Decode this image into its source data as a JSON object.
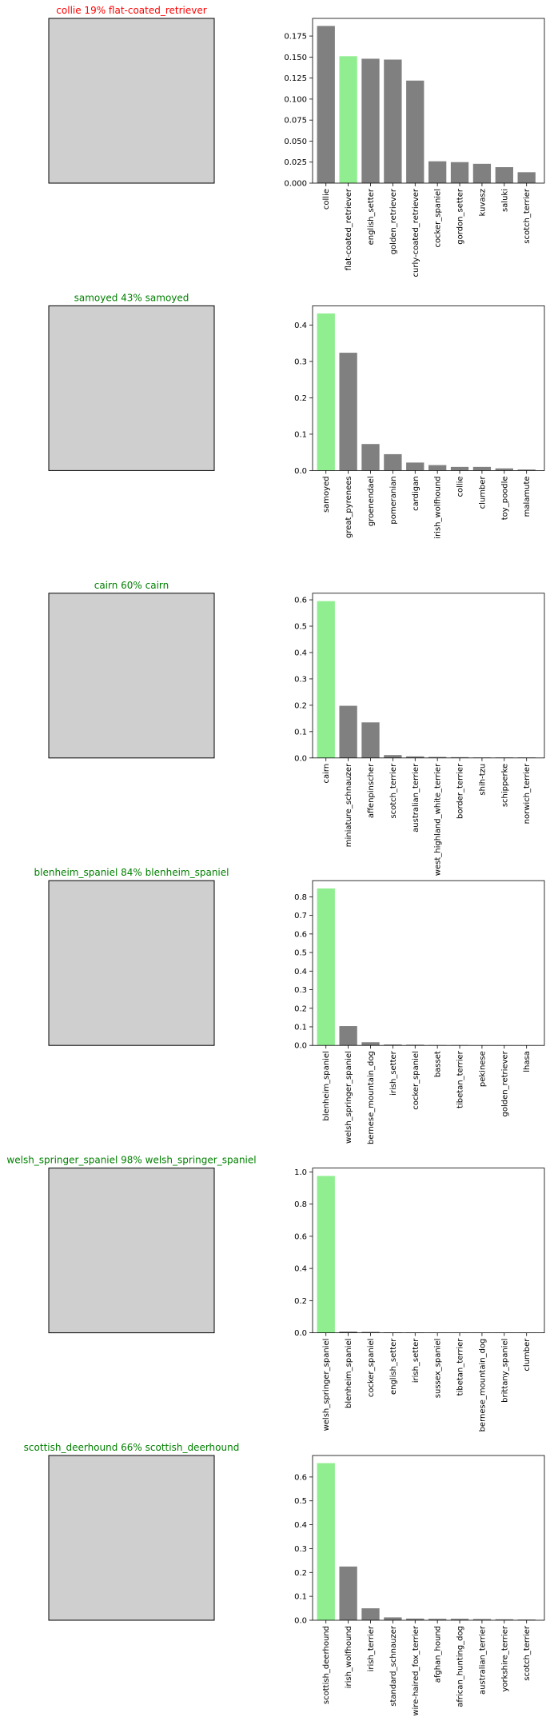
{
  "colors": {
    "bar": "#808080",
    "highlight": "#90ee90",
    "correct": "#008000",
    "wrong": "#ff0000"
  },
  "chart_data": [
    {
      "type": "bar",
      "title": "collie 19% flat-coated_retriever",
      "title_status": "wrong",
      "highlight_index": 1,
      "categories": [
        "collie",
        "flat-coated_retriever",
        "english_setter",
        "golden_retriever",
        "curly-coated_retriever",
        "cocker_spaniel",
        "gordon_setter",
        "kuvasz",
        "saluki",
        "scotch_terrier"
      ],
      "values": [
        0.187,
        0.151,
        0.148,
        0.147,
        0.122,
        0.026,
        0.025,
        0.023,
        0.019,
        0.013
      ],
      "ylim": [
        0,
        0.196
      ],
      "yticks": [
        0.0,
        0.025,
        0.05,
        0.075,
        0.1,
        0.125,
        0.15,
        0.175
      ],
      "ytick_labels": [
        "0.000",
        "0.025",
        "0.050",
        "0.075",
        "0.100",
        "0.125",
        "0.150",
        "0.175"
      ]
    },
    {
      "type": "bar",
      "title": "samoyed 43% samoyed",
      "title_status": "correct",
      "highlight_index": 0,
      "categories": [
        "samoyed",
        "great_pyrenees",
        "groenendael",
        "pomeranian",
        "cardigan",
        "irish_wolfhound",
        "collie",
        "clumber",
        "toy_poodle",
        "malamute"
      ],
      "values": [
        0.432,
        0.324,
        0.073,
        0.045,
        0.022,
        0.015,
        0.01,
        0.01,
        0.006,
        0.003
      ],
      "ylim": [
        0,
        0.453
      ],
      "yticks": [
        0,
        0.1,
        0.2,
        0.3,
        0.4
      ],
      "ytick_labels": [
        "0.0",
        "0.1",
        "0.2",
        "0.3",
        "0.4"
      ]
    },
    {
      "type": "bar",
      "title": "cairn 60% cairn",
      "title_status": "correct",
      "highlight_index": 0,
      "categories": [
        "cairn",
        "miniature_schnauzer",
        "affenpinscher",
        "scotch_terrier",
        "australian_terrier",
        "west_highland_white_terrier",
        "border_terrier",
        "shih-tzu",
        "schipperke",
        "norwich_terrier"
      ],
      "values": [
        0.595,
        0.198,
        0.135,
        0.011,
        0.006,
        0.004,
        0.003,
        0.002,
        0.002,
        0.002
      ],
      "ylim": [
        0,
        0.625
      ],
      "yticks": [
        0,
        0.1,
        0.2,
        0.3,
        0.4,
        0.5,
        0.6
      ],
      "ytick_labels": [
        "0.0",
        "0.1",
        "0.2",
        "0.3",
        "0.4",
        "0.5",
        "0.6"
      ]
    },
    {
      "type": "bar",
      "title": "blenheim_spaniel 84% blenheim_spaniel",
      "title_status": "correct",
      "highlight_index": 0,
      "categories": [
        "blenheim_spaniel",
        "welsh_springer_spaniel",
        "bernese_mountain_dog",
        "irish_setter",
        "cocker_spaniel",
        "basset",
        "tibetan_terrier",
        "pekinese",
        "golden_retriever",
        "lhasa"
      ],
      "values": [
        0.845,
        0.104,
        0.017,
        0.005,
        0.004,
        0.002,
        0.002,
        0.001,
        0.001,
        0.001
      ],
      "ylim": [
        0,
        0.887
      ],
      "yticks": [
        0,
        0.1,
        0.2,
        0.3,
        0.4,
        0.5,
        0.6,
        0.7,
        0.8
      ],
      "ytick_labels": [
        "0.0",
        "0.1",
        "0.2",
        "0.3",
        "0.4",
        "0.5",
        "0.6",
        "0.7",
        "0.8"
      ]
    },
    {
      "type": "bar",
      "title": "welsh_springer_spaniel 98% welsh_springer_spaniel",
      "title_status": "correct",
      "highlight_index": 0,
      "categories": [
        "welsh_springer_spaniel",
        "blenheim_spaniel",
        "cocker_spaniel",
        "english_setter",
        "irish_setter",
        "sussex_spaniel",
        "tibetan_terrier",
        "bernese_mountain_dog",
        "brittany_spaniel",
        "clumber"
      ],
      "values": [
        0.975,
        0.008,
        0.006,
        0.003,
        0.002,
        0.001,
        0.001,
        0.001,
        0.001,
        0.001
      ],
      "ylim": [
        0,
        1.024
      ],
      "yticks": [
        0,
        0.2,
        0.4,
        0.6,
        0.8,
        1.0
      ],
      "ytick_labels": [
        "0.0",
        "0.2",
        "0.4",
        "0.6",
        "0.8",
        "1.0"
      ]
    },
    {
      "type": "bar",
      "title": "scottish_deerhound 66% scottish_deerhound",
      "title_status": "correct",
      "highlight_index": 0,
      "categories": [
        "scottish_deerhound",
        "irish_wolfhound",
        "irish_terrier",
        "standard_schnauzer",
        "wire-haired_fox_terrier",
        "afghan_hound",
        "african_hunting_dog",
        "australian_terrier",
        "yorkshire_terrier",
        "scotch_terrier"
      ],
      "values": [
        0.658,
        0.225,
        0.05,
        0.012,
        0.007,
        0.006,
        0.006,
        0.005,
        0.004,
        0.003
      ],
      "ylim": [
        0,
        0.69
      ],
      "yticks": [
        0,
        0.1,
        0.2,
        0.3,
        0.4,
        0.5,
        0.6
      ],
      "ytick_labels": [
        "0.0",
        "0.1",
        "0.2",
        "0.3",
        "0.4",
        "0.5",
        "0.6"
      ]
    }
  ]
}
